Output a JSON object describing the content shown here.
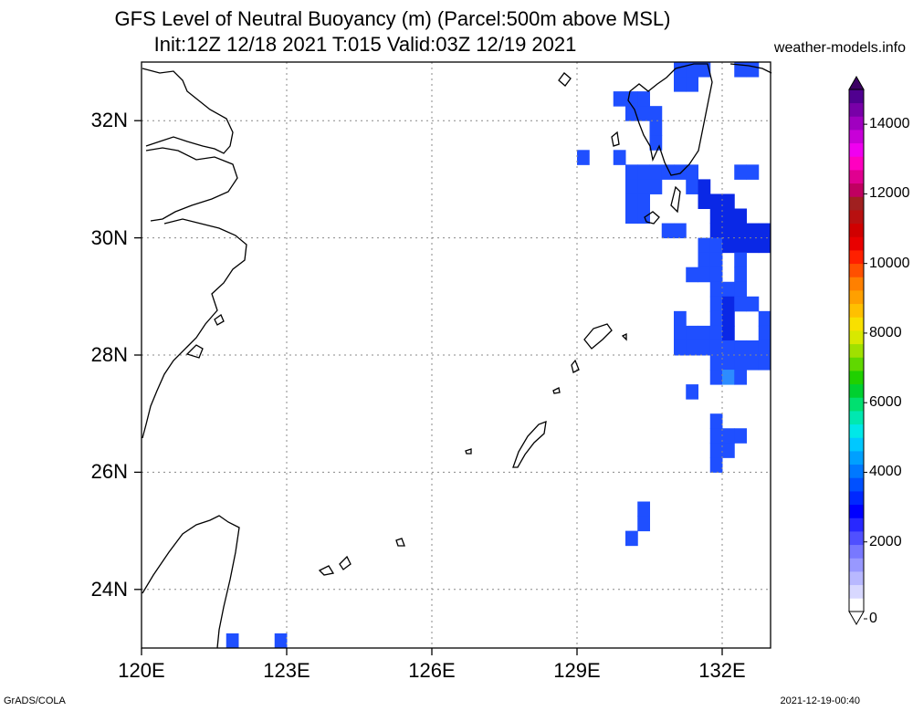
{
  "header": {
    "title_line1": "GFS Level of Neutral Buoyancy (m) (Parcel:500m above MSL)",
    "title_line2": "Init:12Z 12/18 2021 T:015 Valid:03Z 12/19 2021",
    "site": "weather-models.info"
  },
  "footer": {
    "left": "GrADS/COLA",
    "right": "2021-12-19-00:40"
  },
  "map": {
    "lon_range": [
      120,
      133
    ],
    "lat_range": [
      23,
      33
    ],
    "x_ticks": [
      {
        "value": 120,
        "label": "120E"
      },
      {
        "value": 123,
        "label": "123E"
      },
      {
        "value": 126,
        "label": "126E"
      },
      {
        "value": 129,
        "label": "129E"
      },
      {
        "value": 132,
        "label": "132E"
      }
    ],
    "y_ticks": [
      {
        "value": 24,
        "label": "24N"
      },
      {
        "value": 26,
        "label": "26N"
      },
      {
        "value": 28,
        "label": "28N"
      },
      {
        "value": 30,
        "label": "30N"
      },
      {
        "value": 32,
        "label": "32N"
      }
    ],
    "grid": true,
    "cell_deg": 0.25,
    "shaded_cells": [
      [
        131.0,
        32.75,
        "#1f4fff"
      ],
      [
        131.25,
        32.75,
        "#1f4fff"
      ],
      [
        131.5,
        32.75,
        "#1f4fff"
      ],
      [
        131.0,
        32.5,
        "#1f4fff"
      ],
      [
        131.25,
        32.5,
        "#1f4fff"
      ],
      [
        132.25,
        32.75,
        "#1f4fff"
      ],
      [
        132.5,
        32.75,
        "#1f4fff"
      ],
      [
        129.75,
        32.25,
        "#1f4fff"
      ],
      [
        130.0,
        32.25,
        "#1f4fff"
      ],
      [
        130.25,
        32.25,
        "#1f4fff"
      ],
      [
        130.0,
        32.0,
        "#1f4fff"
      ],
      [
        130.25,
        32.0,
        "#1f4fff"
      ],
      [
        130.5,
        32.0,
        "#1f4fff"
      ],
      [
        130.5,
        31.75,
        "#1f4fff"
      ],
      [
        130.5,
        31.5,
        "#1f4fff"
      ],
      [
        129.0,
        31.25,
        "#1f4fff"
      ],
      [
        129.75,
        31.25,
        "#1f4fff"
      ],
      [
        132.25,
        31.0,
        "#1f4fff"
      ],
      [
        132.5,
        31.0,
        "#1f4fff"
      ],
      [
        130.0,
        31.0,
        "#1f4fff"
      ],
      [
        130.25,
        31.0,
        "#1f4fff"
      ],
      [
        130.5,
        31.0,
        "#1f4fff"
      ],
      [
        130.75,
        31.0,
        "#1f4fff"
      ],
      [
        131.0,
        31.0,
        "#1f4fff"
      ],
      [
        131.25,
        31.0,
        "#1f4fff"
      ],
      [
        130.0,
        30.75,
        "#1f4fff"
      ],
      [
        130.25,
        30.75,
        "#1f4fff"
      ],
      [
        130.5,
        30.75,
        "#1f4fff"
      ],
      [
        131.25,
        30.75,
        "#1f4fff"
      ],
      [
        131.5,
        30.75,
        "#0a28e6"
      ],
      [
        130.0,
        30.5,
        "#1f4fff"
      ],
      [
        130.25,
        30.5,
        "#1f4fff"
      ],
      [
        131.5,
        30.5,
        "#0a28e6"
      ],
      [
        131.75,
        30.5,
        "#0a28e6"
      ],
      [
        132.0,
        30.5,
        "#0a28e6"
      ],
      [
        130.0,
        30.25,
        "#1f4fff"
      ],
      [
        130.25,
        30.25,
        "#1f4fff"
      ],
      [
        131.75,
        30.25,
        "#0a28e6"
      ],
      [
        132.0,
        30.25,
        "#0a28e6"
      ],
      [
        132.25,
        30.25,
        "#0a28e6"
      ],
      [
        130.75,
        30.0,
        "#1f4fff"
      ],
      [
        131.0,
        30.0,
        "#1f4fff"
      ],
      [
        131.75,
        30.0,
        "#0a28e6"
      ],
      [
        132.0,
        30.0,
        "#0a28e6"
      ],
      [
        132.25,
        30.0,
        "#0a28e6"
      ],
      [
        132.5,
        30.0,
        "#0a28e6"
      ],
      [
        132.75,
        30.0,
        "#0a28e6"
      ],
      [
        131.5,
        29.75,
        "#1f4fff"
      ],
      [
        131.75,
        29.75,
        "#1f4fff"
      ],
      [
        132.0,
        29.75,
        "#0a28e6"
      ],
      [
        132.25,
        29.75,
        "#0a28e6"
      ],
      [
        132.5,
        29.75,
        "#0a28e6"
      ],
      [
        132.75,
        29.75,
        "#0a28e6"
      ],
      [
        131.5,
        29.5,
        "#1f4fff"
      ],
      [
        131.75,
        29.5,
        "#1f4fff"
      ],
      [
        132.25,
        29.5,
        "#1f4fff"
      ],
      [
        131.25,
        29.25,
        "#1f4fff"
      ],
      [
        131.5,
        29.25,
        "#1f4fff"
      ],
      [
        131.75,
        29.25,
        "#1f4fff"
      ],
      [
        132.25,
        29.25,
        "#1f4fff"
      ],
      [
        131.75,
        29.0,
        "#1f4fff"
      ],
      [
        132.0,
        29.0,
        "#1f4fff"
      ],
      [
        132.25,
        29.0,
        "#1f4fff"
      ],
      [
        131.75,
        28.75,
        "#1f4fff"
      ],
      [
        132.0,
        28.75,
        "#0a28e6"
      ],
      [
        132.25,
        28.75,
        "#1f4fff"
      ],
      [
        132.5,
        28.75,
        "#1f4fff"
      ],
      [
        131.0,
        28.5,
        "#1f4fff"
      ],
      [
        131.75,
        28.5,
        "#1f4fff"
      ],
      [
        132.0,
        28.5,
        "#0a28e6"
      ],
      [
        132.75,
        28.5,
        "#1f4fff"
      ],
      [
        131.0,
        28.25,
        "#1f4fff"
      ],
      [
        131.25,
        28.25,
        "#1f4fff"
      ],
      [
        131.5,
        28.25,
        "#1f4fff"
      ],
      [
        131.75,
        28.25,
        "#1f4fff"
      ],
      [
        132.0,
        28.25,
        "#0a28e6"
      ],
      [
        132.75,
        28.25,
        "#1f4fff"
      ],
      [
        131.0,
        28.0,
        "#1f4fff"
      ],
      [
        131.25,
        28.0,
        "#1f4fff"
      ],
      [
        131.5,
        28.0,
        "#1f4fff"
      ],
      [
        131.75,
        28.0,
        "#1f4fff"
      ],
      [
        132.0,
        28.0,
        "#1f4fff"
      ],
      [
        132.25,
        28.0,
        "#1f4fff"
      ],
      [
        132.5,
        28.0,
        "#1f4fff"
      ],
      [
        132.75,
        28.0,
        "#1f4fff"
      ],
      [
        131.75,
        27.75,
        "#1f4fff"
      ],
      [
        132.0,
        27.75,
        "#1f4fff"
      ],
      [
        132.25,
        27.75,
        "#1f4fff"
      ],
      [
        132.5,
        27.75,
        "#1f4fff"
      ],
      [
        132.75,
        27.75,
        "#1f4fff"
      ],
      [
        131.75,
        27.5,
        "#1f4fff"
      ],
      [
        132.0,
        27.5,
        "#2d8cff"
      ],
      [
        132.25,
        27.5,
        "#1f4fff"
      ],
      [
        131.25,
        27.25,
        "#1f4fff"
      ],
      [
        131.75,
        26.75,
        "#1f4fff"
      ],
      [
        131.75,
        26.5,
        "#1f4fff"
      ],
      [
        132.0,
        26.5,
        "#1f4fff"
      ],
      [
        132.25,
        26.5,
        "#1f4fff"
      ],
      [
        131.75,
        26.25,
        "#1f4fff"
      ],
      [
        132.0,
        26.25,
        "#1f4fff"
      ],
      [
        131.75,
        26.0,
        "#1f4fff"
      ],
      [
        130.25,
        25.25,
        "#1f4fff"
      ],
      [
        130.25,
        25.0,
        "#1f4fff"
      ],
      [
        130.0,
        24.75,
        "#1f4fff"
      ],
      [
        121.75,
        23.0,
        "#1f4fff"
      ],
      [
        122.75,
        23.0,
        "#1f4fff"
      ]
    ]
  },
  "colorbar": {
    "range": [
      0,
      15000
    ],
    "labels": [
      {
        "value": 0,
        "label": "0"
      },
      {
        "value": 2000,
        "label": "2000"
      },
      {
        "value": 4000,
        "label": "4000"
      },
      {
        "value": 6000,
        "label": "6000"
      },
      {
        "value": 8000,
        "label": "8000"
      },
      {
        "value": 10000,
        "label": "10000"
      },
      {
        "value": 12000,
        "label": "12000"
      },
      {
        "value": 14000,
        "label": "14000"
      }
    ],
    "colors": [
      "#ffffff",
      "#d8d8ff",
      "#b8b8ff",
      "#9898ff",
      "#7878ff",
      "#5050ff",
      "#2828ff",
      "#0000ff",
      "#0028ff",
      "#0050ff",
      "#0078ff",
      "#00a0ff",
      "#00c8ff",
      "#00e8e8",
      "#00e8b0",
      "#00e070",
      "#00d030",
      "#20d000",
      "#60d800",
      "#a0e000",
      "#d8e800",
      "#f8e000",
      "#ffc000",
      "#ffa000",
      "#ff8000",
      "#ff5000",
      "#ff2000",
      "#e80000",
      "#d00000",
      "#b81010",
      "#a02020",
      "#c00060",
      "#e00090",
      "#ff00c0",
      "#f000f0",
      "#c800d8",
      "#a000c0",
      "#7800a8",
      "#500090"
    ]
  }
}
